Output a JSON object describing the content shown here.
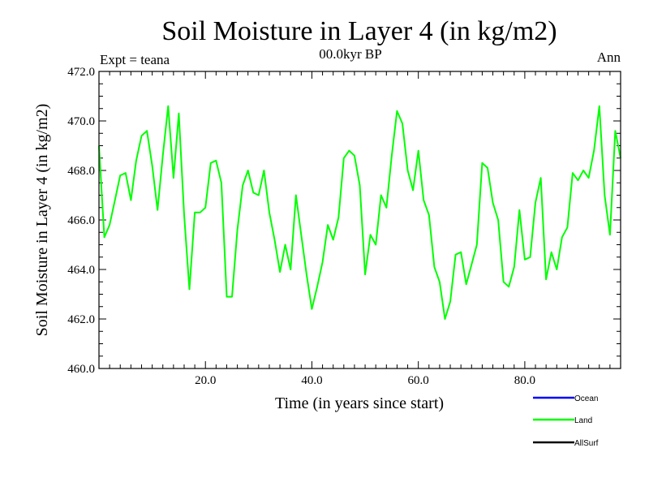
{
  "chart_data": {
    "type": "line",
    "title": "Soil Moisture in Layer 4 (in kg/m2)",
    "subtitle": "00.0kyr BP",
    "experiment_label": "Expt = teana",
    "period_label": "Ann",
    "xlabel": "Time (in years since start)",
    "ylabel": "Soil Moisture in Layer 4 (in kg/m2)",
    "xlim": [
      0,
      98
    ],
    "ylim": [
      460.0,
      472.0
    ],
    "x_ticks": [
      20,
      40,
      60,
      80
    ],
    "x_tick_labels": [
      "20.0",
      "40.0",
      "60.0",
      "80.0"
    ],
    "y_ticks": [
      460,
      462,
      464,
      466,
      468,
      470,
      472
    ],
    "y_tick_labels": [
      "460.0",
      "462.0",
      "464.0",
      "466.0",
      "468.0",
      "470.0",
      "472.0"
    ],
    "legend": [
      {
        "name": "Ocean",
        "color": "#0000ff"
      },
      {
        "name": "Land",
        "color": "#00ff00"
      },
      {
        "name": "AllSurf",
        "color": "#000000"
      }
    ],
    "series": [
      {
        "name": "Land",
        "color": "#00ff00",
        "x": [
          0,
          1,
          2,
          3,
          4,
          5,
          6,
          7,
          8,
          9,
          10,
          11,
          12,
          13,
          14,
          15,
          16,
          17,
          18,
          19,
          20,
          21,
          22,
          23,
          24,
          25,
          26,
          27,
          28,
          29,
          30,
          31,
          32,
          33,
          34,
          35,
          36,
          37,
          38,
          39,
          40,
          41,
          42,
          43,
          44,
          45,
          46,
          47,
          48,
          49,
          50,
          51,
          52,
          53,
          54,
          55,
          56,
          57,
          58,
          59,
          60,
          61,
          62,
          63,
          64,
          65,
          66,
          67,
          68,
          69,
          70,
          71,
          72,
          73,
          74,
          75,
          76,
          77,
          78,
          79,
          80,
          81,
          82,
          83,
          84,
          85,
          86,
          87,
          88,
          89,
          90,
          91,
          92,
          93,
          94,
          95,
          96,
          97,
          98
        ],
        "values": [
          469.0,
          465.3,
          465.8,
          466.8,
          467.8,
          467.9,
          466.8,
          468.4,
          469.4,
          469.6,
          468.2,
          466.4,
          468.6,
          470.6,
          467.7,
          470.3,
          466.2,
          463.2,
          466.3,
          466.3,
          466.5,
          468.3,
          468.4,
          467.5,
          462.9,
          462.9,
          465.6,
          467.4,
          468.0,
          467.1,
          467.0,
          468.0,
          466.3,
          465.2,
          463.9,
          465.0,
          464.0,
          467.0,
          465.4,
          463.8,
          462.4,
          463.3,
          464.3,
          465.8,
          465.2,
          466.1,
          468.5,
          468.8,
          468.6,
          467.4,
          463.8,
          465.4,
          465.0,
          467.0,
          466.5,
          468.6,
          470.4,
          469.9,
          468.0,
          467.2,
          468.8,
          466.8,
          466.2,
          464.1,
          463.5,
          462.0,
          462.7,
          464.6,
          464.7,
          463.4,
          464.2,
          465.0,
          468.3,
          468.1,
          466.7,
          466.0,
          463.5,
          463.3,
          464.1,
          466.4,
          464.4,
          464.5,
          466.7,
          467.7,
          463.6,
          464.7,
          464.0,
          465.3,
          465.7,
          467.9,
          467.6,
          468.0,
          467.7,
          468.8,
          470.6,
          467.0,
          465.4,
          469.6,
          468.5
        ]
      }
    ]
  }
}
